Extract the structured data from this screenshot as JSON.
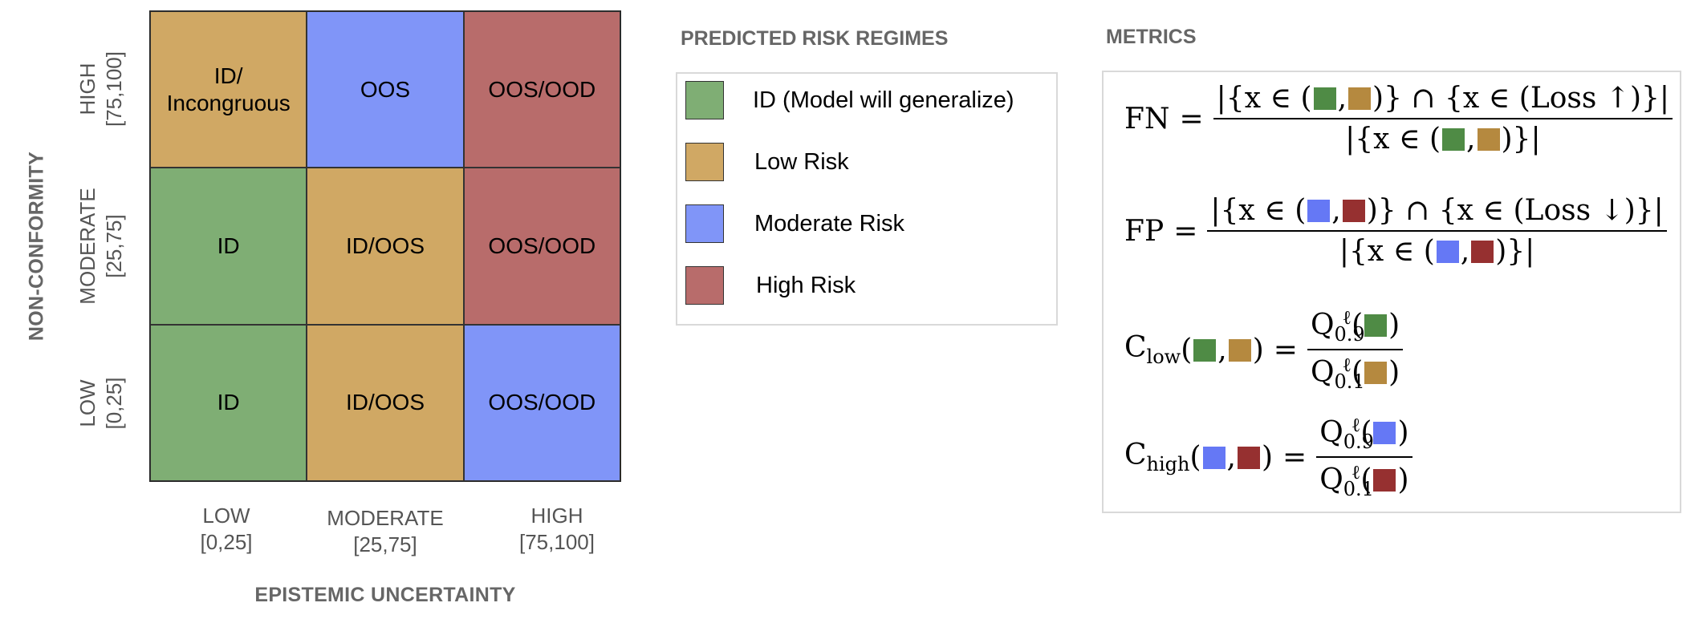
{
  "colors": {
    "green": "#7fae74",
    "tan": "#d0a864",
    "blue": "#8095f8",
    "red": "#b86c6b",
    "green_dark": "#4f8b45",
    "tan_dark": "#b5893f",
    "blue_dark": "#6578f5",
    "red_dark": "#963030"
  },
  "grid": {
    "rows": [
      {
        "cells": [
          {
            "label": "ID/\nIncongruous",
            "color": "tan"
          },
          {
            "label": "OOS",
            "color": "blue"
          },
          {
            "label": "OOS/OOD",
            "color": "red"
          }
        ]
      },
      {
        "cells": [
          {
            "label": "ID",
            "color": "green"
          },
          {
            "label": "ID/OOS",
            "color": "tan"
          },
          {
            "label": "OOS/OOD",
            "color": "red"
          }
        ]
      },
      {
        "cells": [
          {
            "label": "ID",
            "color": "green"
          },
          {
            "label": "ID/OOS",
            "color": "tan"
          },
          {
            "label": "OOS/OOD",
            "color": "blue"
          }
        ]
      }
    ],
    "x_axis": {
      "title": "EPISTEMIC UNCERTAINTY",
      "ticks": [
        {
          "label": "LOW",
          "range": "[0,25]"
        },
        {
          "label": "MODERATE",
          "range": "[25,75]"
        },
        {
          "label": "HIGH",
          "range": "[75,100]"
        }
      ]
    },
    "y_axis": {
      "title": "NON-CONFORMITY",
      "ticks": [
        {
          "label": "HIGH",
          "range": "[75,100]"
        },
        {
          "label": "MODERATE",
          "range": "[25,75]"
        },
        {
          "label": "LOW",
          "range": "[0,25]"
        }
      ]
    }
  },
  "legend": {
    "title": "PREDICTED RISK REGIMES",
    "items": [
      {
        "label": "ID (Model will generalize)",
        "color": "green"
      },
      {
        "label": "Low Risk",
        "color": "tan"
      },
      {
        "label": "Moderate Risk",
        "color": "blue"
      },
      {
        "label": "High Risk",
        "color": "red"
      }
    ]
  },
  "metrics": {
    "title": "METRICS",
    "fn": {
      "lhs": "FN",
      "loss": "Loss ↑"
    },
    "fp": {
      "lhs": "FP",
      "loss": "Loss ↓"
    },
    "c_low": {
      "name": "C",
      "sub": "low",
      "q_num": "0.9",
      "q_den": "0.1"
    },
    "c_high": {
      "name": "C",
      "sub": "high",
      "q_num": "0.9",
      "q_den": "0.1"
    }
  }
}
